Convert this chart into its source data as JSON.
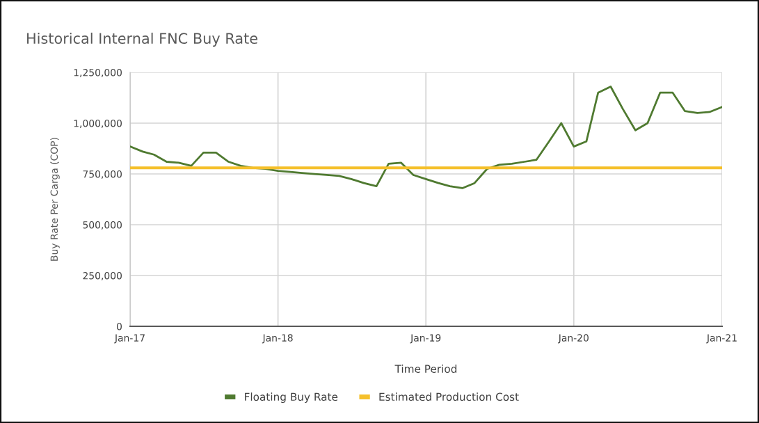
{
  "chart_data": {
    "type": "line",
    "title": "Historical Internal FNC Buy Rate",
    "xlabel": "Time Period",
    "ylabel": "Buy Rate Per Carga (COP)",
    "series": [
      {
        "name": "Floating Buy Rate",
        "color": "#4f7a30",
        "x": [
          "2017-01",
          "2017-02",
          "2017-03",
          "2017-04",
          "2017-05",
          "2017-06",
          "2017-07",
          "2017-08",
          "2017-09",
          "2017-10",
          "2017-11",
          "2017-12",
          "2018-01",
          "2018-02",
          "2018-03",
          "2018-04",
          "2018-05",
          "2018-06",
          "2018-07",
          "2018-08",
          "2018-09",
          "2018-10",
          "2018-11",
          "2018-12",
          "2019-01",
          "2019-02",
          "2019-03",
          "2019-04",
          "2019-05",
          "2019-06",
          "2019-07",
          "2019-08",
          "2019-09",
          "2019-10",
          "2019-11",
          "2019-12",
          "2020-01",
          "2020-02",
          "2020-03",
          "2020-04",
          "2020-05",
          "2020-06",
          "2020-07",
          "2020-08",
          "2020-09",
          "2020-10",
          "2020-11",
          "2020-12",
          "2021-01"
        ],
        "values": [
          885000,
          860000,
          845000,
          810000,
          805000,
          790000,
          855000,
          855000,
          810000,
          790000,
          780000,
          775000,
          765000,
          760000,
          755000,
          750000,
          745000,
          740000,
          725000,
          705000,
          690000,
          800000,
          805000,
          745000,
          725000,
          705000,
          690000,
          680000,
          705000,
          775000,
          795000,
          800000,
          810000,
          820000,
          910000,
          1000000,
          885000,
          910000,
          1150000,
          1180000,
          1070000,
          965000,
          1000000,
          1150000,
          1150000,
          1060000,
          1050000,
          1055000,
          1080000
        ]
      },
      {
        "name": "Estimated Production Cost",
        "color": "#f5c02c",
        "x": [
          "2017-01",
          "2021-01"
        ],
        "values": [
          780000,
          780000
        ]
      }
    ],
    "xlim": [
      "2017-01",
      "2021-01"
    ],
    "xticks": [
      {
        "value": "2017-01",
        "label": "Jan-17"
      },
      {
        "value": "2018-01",
        "label": "Jan-18"
      },
      {
        "value": "2019-01",
        "label": "Jan-19"
      },
      {
        "value": "2020-01",
        "label": "Jan-20"
      },
      {
        "value": "2021-01",
        "label": "Jan-21"
      }
    ],
    "ylim": [
      0,
      1250000
    ],
    "yticks": [
      0,
      {
        "value": 250000,
        "label": "250,000"
      },
      {
        "value": 500000,
        "label": "500,000"
      },
      {
        "value": 750000,
        "label": "750,000"
      },
      {
        "value": 1000000,
        "label": "1,000,000"
      },
      {
        "value": 1250000,
        "label": "1,250,000"
      }
    ],
    "grid": true,
    "legend": "bottom",
    "marker": "none",
    "line_style": "solid"
  }
}
